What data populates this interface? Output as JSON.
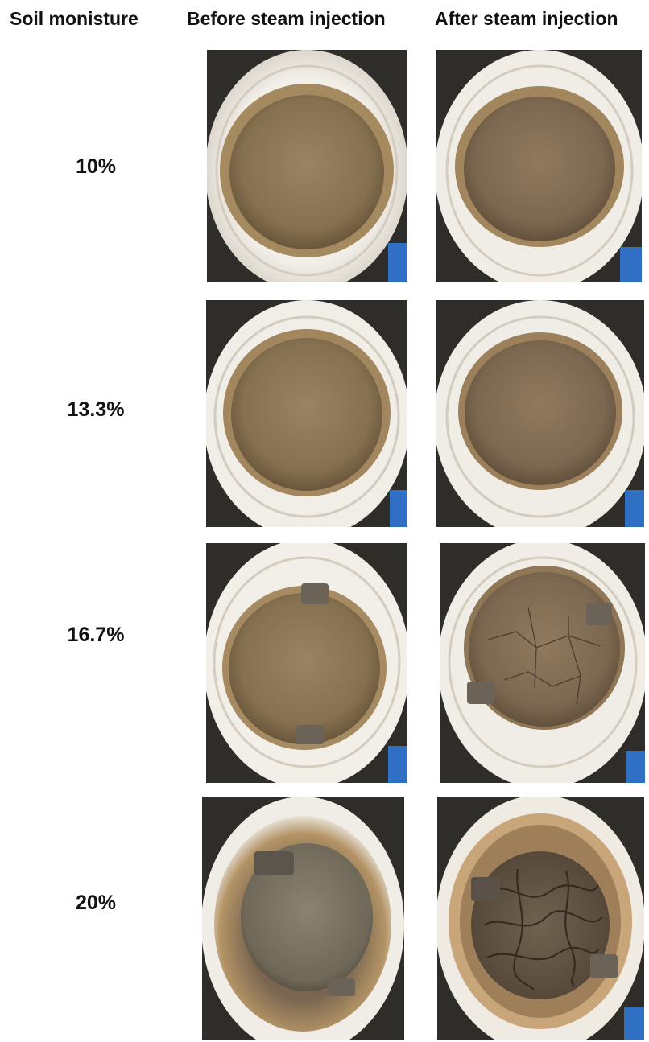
{
  "headers": {
    "moisture": "Soil monisture",
    "before": "Before steam injection",
    "after": "After steam injection"
  },
  "rows": [
    {
      "label": "10%"
    },
    {
      "label": "13.3%"
    },
    {
      "label": "16.7%"
    },
    {
      "label": "20%"
    }
  ],
  "colors": {
    "soil_before": "#8a7457",
    "soil_after": "#7b6a56",
    "container_white": "#efece6",
    "background_dark": "#2b2b2b",
    "blue_fixture": "#2f6fc4"
  }
}
